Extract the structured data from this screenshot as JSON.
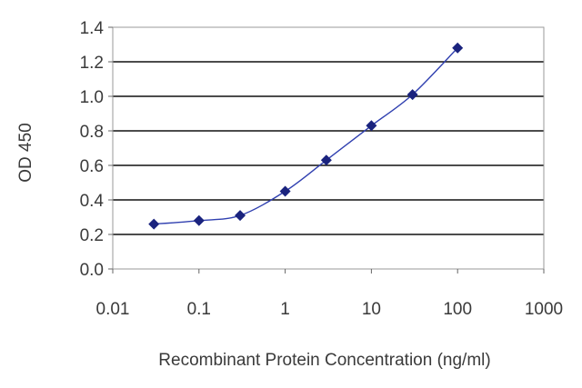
{
  "chart_data": {
    "type": "scatter",
    "xscale": "log",
    "yscale": "linear",
    "xlim": [
      0.01,
      1000
    ],
    "ylim": [
      0.0,
      1.4
    ],
    "xticks": [
      "0.01",
      "0.1",
      "1",
      "10",
      "100",
      "1000"
    ],
    "yticks": [
      "0.0",
      "0.2",
      "0.4",
      "0.6",
      "0.8",
      "1.0",
      "1.2",
      "1.4"
    ],
    "xlabel": "Recombinant Protein Concentration (ng/ml)",
    "ylabel": "OD 450",
    "grid": "horizontal",
    "legend": "none",
    "series": [
      {
        "x": [
          0.03,
          0.1,
          0.3,
          1,
          3,
          10,
          30,
          100
        ],
        "y": [
          0.26,
          0.28,
          0.31,
          0.45,
          0.63,
          0.83,
          1.01,
          1.28
        ],
        "marker": "diamond",
        "fitted_curve": true
      }
    ],
    "colors": {
      "marker": "#1a237e",
      "curve": "#3040b0",
      "grid": "#111111",
      "frame": "#999999"
    }
  }
}
